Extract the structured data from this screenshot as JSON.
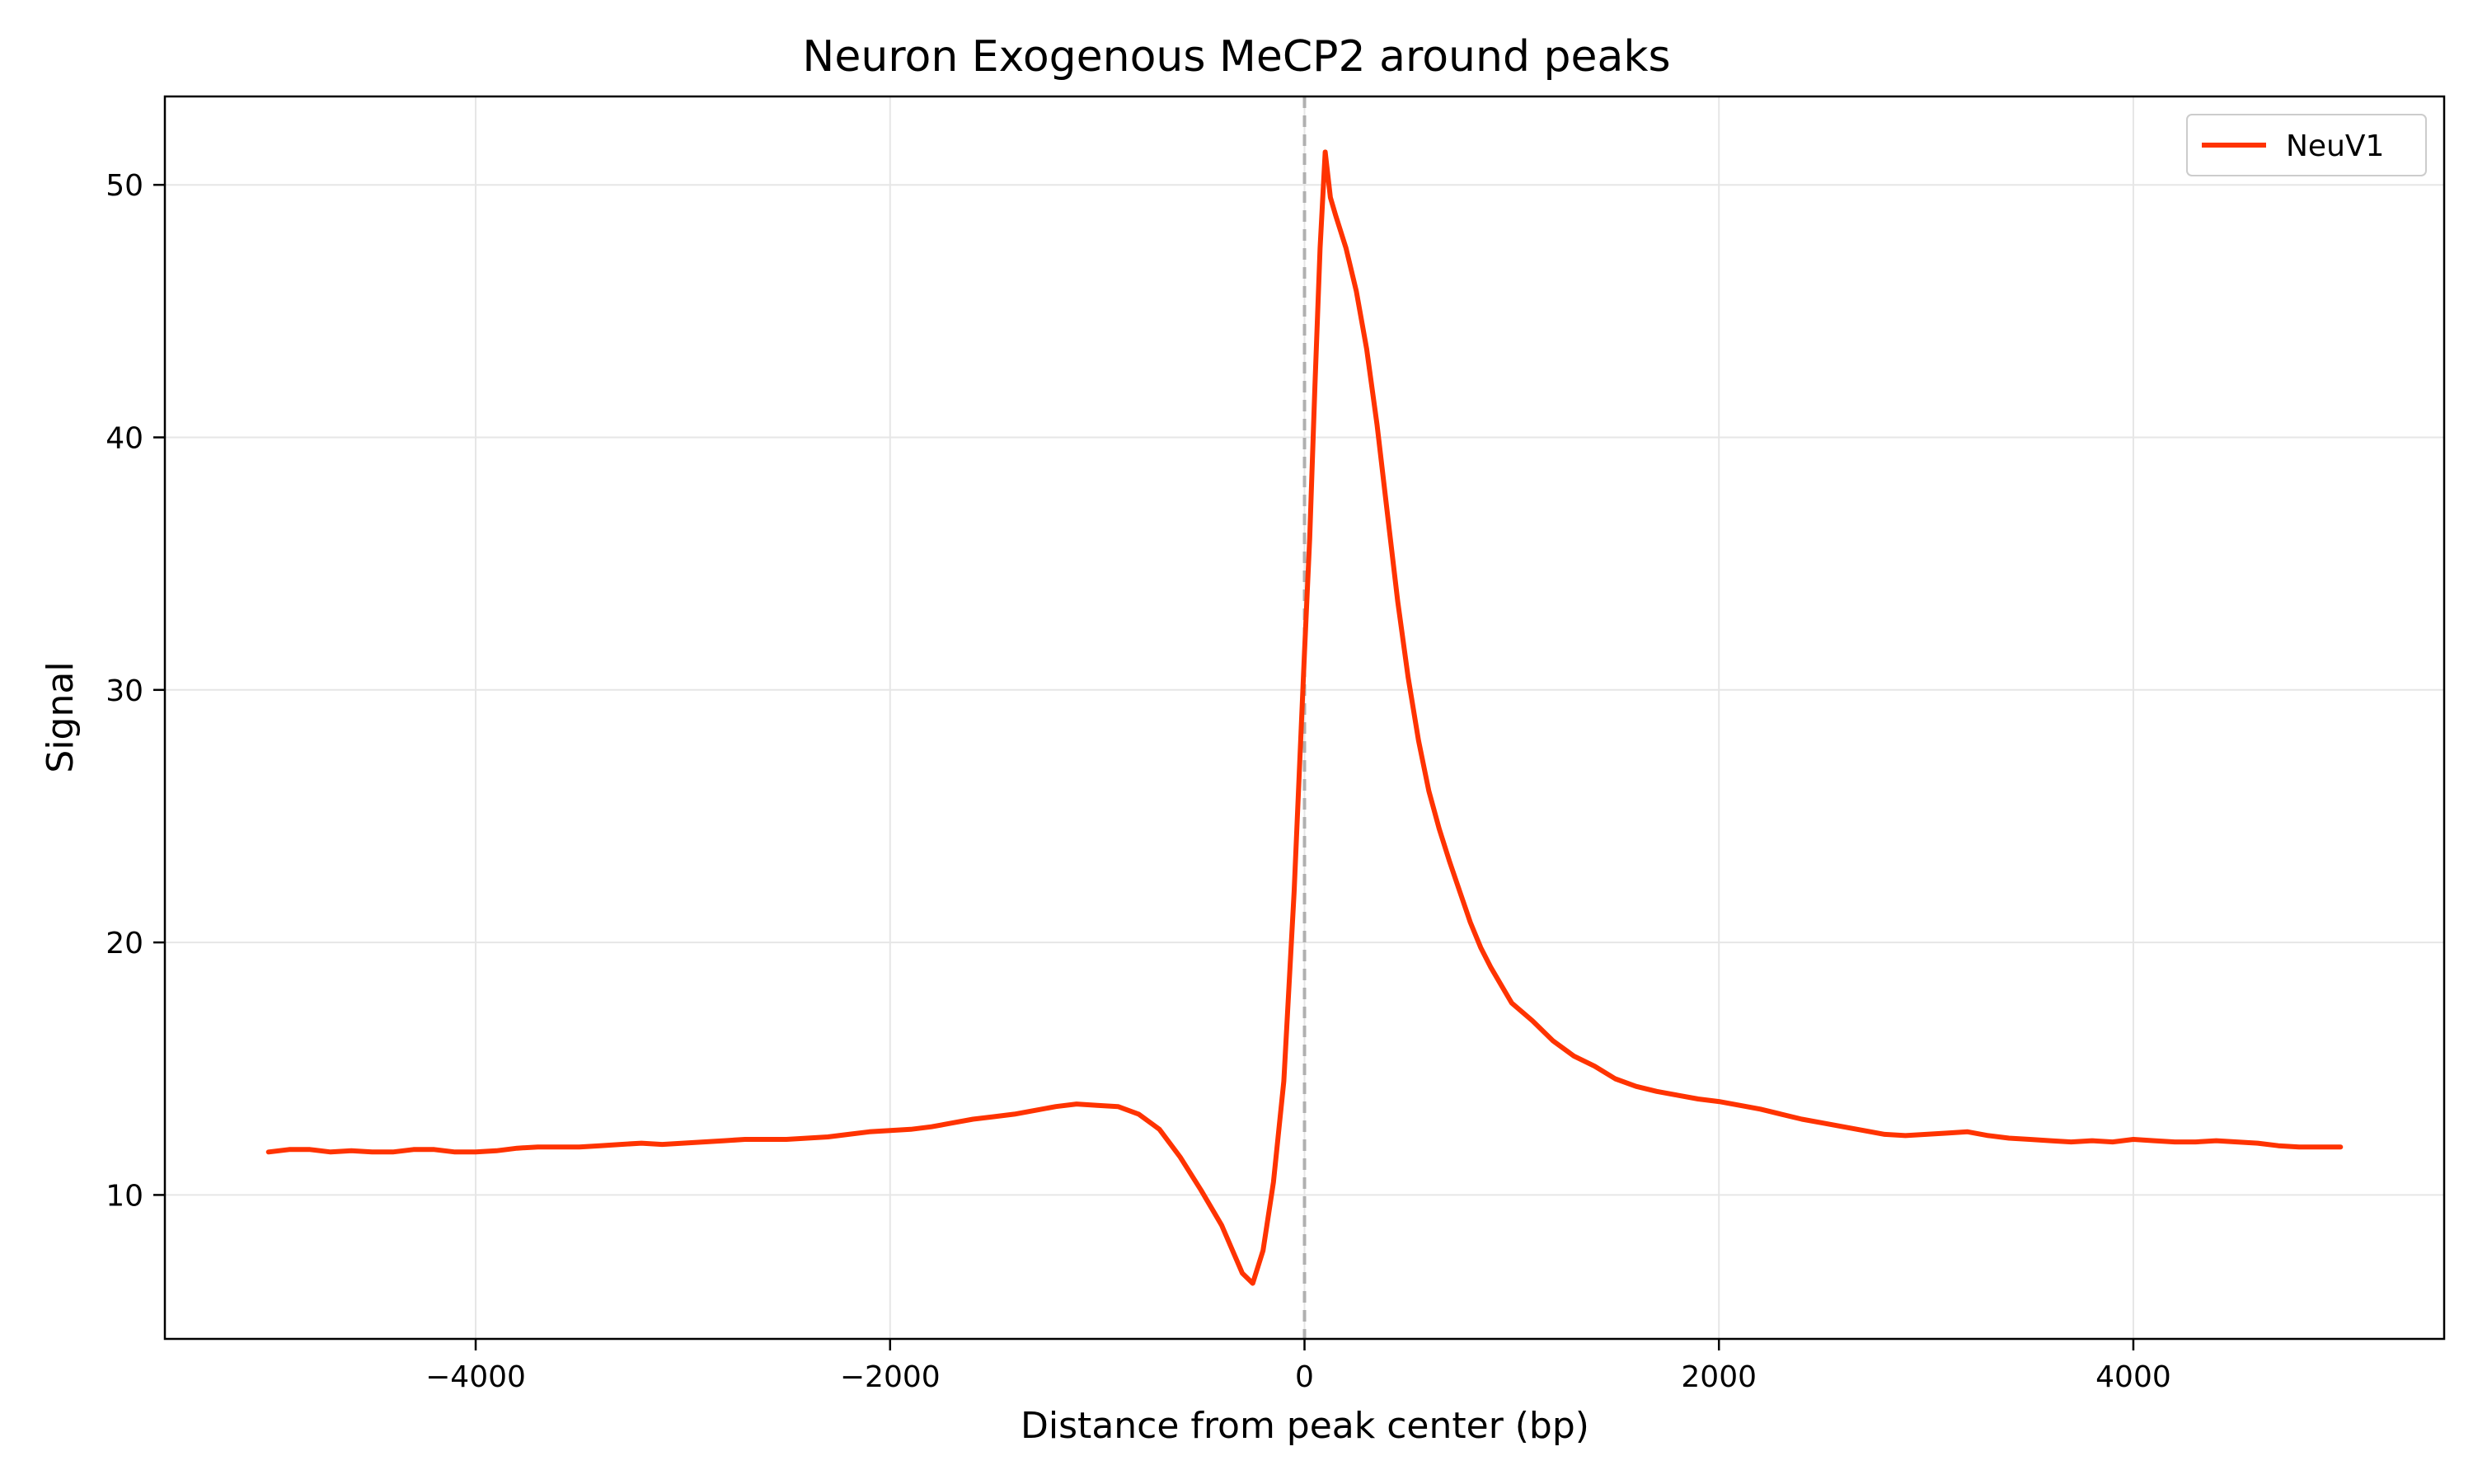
{
  "chart_data": {
    "type": "line",
    "title": "Neuron Exogenous MeCP2 around peaks",
    "xlabel": "Distance from peak center (bp)",
    "ylabel": "Signal",
    "xlim": [
      -5500,
      5500
    ],
    "ylim": [
      4.3,
      53.5
    ],
    "xticks": [
      {
        "value": -4000,
        "label": "−4000"
      },
      {
        "value": -2000,
        "label": "−2000"
      },
      {
        "value": 0,
        "label": "0"
      },
      {
        "value": 2000,
        "label": "2000"
      },
      {
        "value": 4000,
        "label": "4000"
      }
    ],
    "yticks": [
      {
        "value": 10,
        "label": "10"
      },
      {
        "value": 20,
        "label": "20"
      },
      {
        "value": 30,
        "label": "30"
      },
      {
        "value": 40,
        "label": "40"
      },
      {
        "value": 50,
        "label": "50"
      }
    ],
    "grid": true,
    "legend_position": "top-right",
    "reference_line": {
      "x": 0,
      "style": "dashed",
      "color": "#b0b0b0"
    },
    "series": [
      {
        "name": "NeuV1",
        "color": "#ff3300",
        "x": [
          -5000,
          -4900,
          -4800,
          -4700,
          -4600,
          -4500,
          -4400,
          -4300,
          -4200,
          -4100,
          -4000,
          -3900,
          -3800,
          -3700,
          -3600,
          -3500,
          -3400,
          -3300,
          -3200,
          -3100,
          -3000,
          -2900,
          -2800,
          -2700,
          -2600,
          -2500,
          -2400,
          -2300,
          -2200,
          -2100,
          -2000,
          -1900,
          -1800,
          -1700,
          -1600,
          -1500,
          -1400,
          -1300,
          -1200,
          -1100,
          -1000,
          -900,
          -800,
          -700,
          -600,
          -500,
          -400,
          -300,
          -250,
          -200,
          -150,
          -100,
          -50,
          0,
          25,
          50,
          75,
          100,
          125,
          150,
          200,
          250,
          300,
          350,
          400,
          450,
          500,
          550,
          600,
          650,
          700,
          750,
          800,
          850,
          900,
          950,
          1000,
          1100,
          1200,
          1300,
          1400,
          1500,
          1600,
          1700,
          1800,
          1900,
          2000,
          2100,
          2200,
          2300,
          2400,
          2500,
          2600,
          2700,
          2800,
          2900,
          3000,
          3100,
          3200,
          3300,
          3400,
          3500,
          3600,
          3700,
          3800,
          3900,
          4000,
          4100,
          4200,
          4300,
          4400,
          4500,
          4600,
          4700,
          4800,
          4900,
          5000
        ],
        "y": [
          11.7,
          11.8,
          11.8,
          11.7,
          11.75,
          11.7,
          11.7,
          11.8,
          11.8,
          11.7,
          11.7,
          11.75,
          11.85,
          11.9,
          11.9,
          11.9,
          11.95,
          12.0,
          12.05,
          12.0,
          12.05,
          12.1,
          12.15,
          12.2,
          12.2,
          12.2,
          12.25,
          12.3,
          12.4,
          12.5,
          12.55,
          12.6,
          12.7,
          12.85,
          13.0,
          13.1,
          13.2,
          13.35,
          13.5,
          13.6,
          13.55,
          13.5,
          13.2,
          12.6,
          11.5,
          10.2,
          8.8,
          6.9,
          6.5,
          7.8,
          10.5,
          14.5,
          22.0,
          31.5,
          36.0,
          42.0,
          47.5,
          51.3,
          49.5,
          48.8,
          47.5,
          45.8,
          43.5,
          40.5,
          37.0,
          33.5,
          30.5,
          28.0,
          26.0,
          24.5,
          23.2,
          22.0,
          20.8,
          19.8,
          19.0,
          18.3,
          17.6,
          16.9,
          16.1,
          15.5,
          15.1,
          14.6,
          14.3,
          14.1,
          13.95,
          13.8,
          13.7,
          13.55,
          13.4,
          13.2,
          13.0,
          12.85,
          12.7,
          12.55,
          12.4,
          12.35,
          12.4,
          12.45,
          12.5,
          12.35,
          12.25,
          12.2,
          12.15,
          12.1,
          12.15,
          12.1,
          12.2,
          12.15,
          12.1,
          12.1,
          12.15,
          12.1,
          12.05,
          11.95,
          11.9,
          11.9,
          11.9
        ]
      }
    ]
  }
}
